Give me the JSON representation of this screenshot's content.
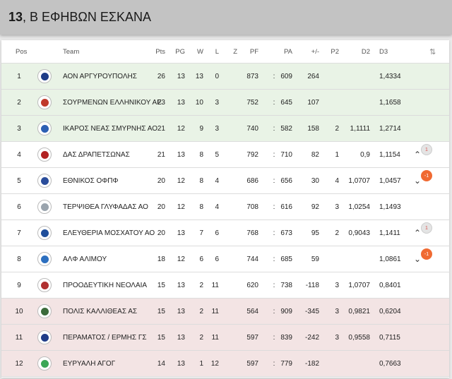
{
  "header": {
    "number": "13",
    "title": ", Β ΕΦΗΒΩΝ ΕΣΚΑΝΑ"
  },
  "columns": {
    "pos": "Pos",
    "team": "Team",
    "pts": "Pts",
    "pg": "PG",
    "w": "W",
    "l": "L",
    "z": "Z",
    "pf": "PF",
    "pa": "PA",
    "diff": "+/-",
    "p2": "P2",
    "d2": "D2",
    "d3": "D3",
    "sort_icon": "⇅"
  },
  "colors": {
    "promotion": "#e9f3e6",
    "relegation": "#f3e4e4",
    "down_badge": "#f06a32",
    "header_bg": "#c3c3c3"
  },
  "rows": [
    {
      "pos": "1",
      "team": "ΑΟΝ ΑΡΓΥΡΟΥΠΟΛΗΣ",
      "pts": "26",
      "pg": "13",
      "w": "13",
      "l": "0",
      "pf": "873",
      "sep": ":",
      "pa": "609",
      "diff": "264",
      "p2": "",
      "d2": "",
      "d3": "1,4334",
      "zone": "green",
      "logo_color": "#1f3c88",
      "trend": "",
      "trend_value": ""
    },
    {
      "pos": "2",
      "team": "ΣΟΥΡΜΕΝΩΝ ΕΛΛΗΝΙΚΟΥ ΑΕ",
      "pts": "23",
      "pg": "13",
      "w": "10",
      "l": "3",
      "pf": "752",
      "sep": ":",
      "pa": "645",
      "diff": "107",
      "p2": "",
      "d2": "",
      "d3": "1,1658",
      "zone": "green",
      "logo_color": "#c0392b",
      "trend": "",
      "trend_value": ""
    },
    {
      "pos": "3",
      "team": "ΙΚΑΡΟΣ ΝΕΑΣ ΣΜΥΡΝΗΣ ΑΟ",
      "pts": "21",
      "pg": "12",
      "w": "9",
      "l": "3",
      "pf": "740",
      "sep": ":",
      "pa": "582",
      "diff": "158",
      "p2": "2",
      "d2": "1,1111",
      "d3": "1,2714",
      "zone": "green",
      "logo_color": "#2c5fb3",
      "trend": "",
      "trend_value": ""
    },
    {
      "pos": "4",
      "team": "ΔΑΣ ΔΡΑΠΕΤΣΩΝΑΣ",
      "pts": "21",
      "pg": "13",
      "w": "8",
      "l": "5",
      "pf": "792",
      "sep": ":",
      "pa": "710",
      "diff": "82",
      "p2": "1",
      "d2": "0,9",
      "d3": "1,1154",
      "zone": "white",
      "logo_color": "#b22222",
      "trend": "up",
      "trend_value": "1"
    },
    {
      "pos": "5",
      "team": "ΕΘΝΙΚΟΣ ΟΦΠΦ",
      "pts": "20",
      "pg": "12",
      "w": "8",
      "l": "4",
      "pf": "686",
      "sep": ":",
      "pa": "656",
      "diff": "30",
      "p2": "4",
      "d2": "1,0707",
      "d3": "1,0457",
      "zone": "white",
      "logo_color": "#2a4d9b",
      "trend": "down",
      "trend_value": "-1"
    },
    {
      "pos": "6",
      "team": "ΤΕΡΨΙΘΕΑ ΓΛΥΦΑΔΑΣ ΑΟ",
      "pts": "20",
      "pg": "12",
      "w": "8",
      "l": "4",
      "pf": "708",
      "sep": ":",
      "pa": "616",
      "diff": "92",
      "p2": "3",
      "d2": "1,0254",
      "d3": "1,1493",
      "zone": "white",
      "logo_color": "#9aa4ad",
      "trend": "",
      "trend_value": ""
    },
    {
      "pos": "7",
      "team": "ΕΛΕΥΘΕΡΙΑ ΜΟΣΧΑΤΟΥ ΑΟ",
      "pts": "20",
      "pg": "13",
      "w": "7",
      "l": "6",
      "pf": "768",
      "sep": ":",
      "pa": "673",
      "diff": "95",
      "p2": "2",
      "d2": "0,9043",
      "d3": "1,1411",
      "zone": "white",
      "logo_color": "#1f4e9b",
      "trend": "up",
      "trend_value": "1"
    },
    {
      "pos": "8",
      "team": "ΑΛΦ ΑΛΙΜΟΥ",
      "pts": "18",
      "pg": "12",
      "w": "6",
      "l": "6",
      "pf": "744",
      "sep": ":",
      "pa": "685",
      "diff": "59",
      "p2": "",
      "d2": "",
      "d3": "1,0861",
      "zone": "white",
      "logo_color": "#2c6fbf",
      "trend": "down",
      "trend_value": "-1"
    },
    {
      "pos": "9",
      "team": "ΠΡΟΟΔΕΥΤΙΚΗ ΝΕΟΛΑΙΑ",
      "pts": "15",
      "pg": "13",
      "w": "2",
      "l": "11",
      "pf": "620",
      "sep": ":",
      "pa": "738",
      "diff": "-118",
      "p2": "3",
      "d2": "1,0707",
      "d3": "0,8401",
      "zone": "white",
      "logo_color": "#b03030",
      "trend": "",
      "trend_value": ""
    },
    {
      "pos": "10",
      "team": "ΠΟΛΙΣ ΚΑΛΛΙΘΕΑΣ ΑΣ",
      "pts": "15",
      "pg": "13",
      "w": "2",
      "l": "11",
      "pf": "564",
      "sep": ":",
      "pa": "909",
      "diff": "-345",
      "p2": "3",
      "d2": "0,9821",
      "d3": "0,6204",
      "zone": "red",
      "logo_color": "#3b6b3b",
      "trend": "",
      "trend_value": ""
    },
    {
      "pos": "11",
      "team": "ΠΕΡΑΜΑΤΟΣ / ΕΡΜΗΣ ΓΣ",
      "pts": "15",
      "pg": "13",
      "w": "2",
      "l": "11",
      "pf": "597",
      "sep": ":",
      "pa": "839",
      "diff": "-242",
      "p2": "3",
      "d2": "0,9558",
      "d3": "0,7115",
      "zone": "red",
      "logo_color": "#1f3c88",
      "trend": "",
      "trend_value": ""
    },
    {
      "pos": "12",
      "team": "ΕΥΡΥΑΛΗ ΑΓΟΓ",
      "pts": "14",
      "pg": "13",
      "w": "1",
      "l": "12",
      "pf": "597",
      "sep": ":",
      "pa": "779",
      "diff": "-182",
      "p2": "",
      "d2": "",
      "d3": "0,7663",
      "zone": "red",
      "logo_color": "#3aa655",
      "trend": "",
      "trend_value": ""
    }
  ]
}
